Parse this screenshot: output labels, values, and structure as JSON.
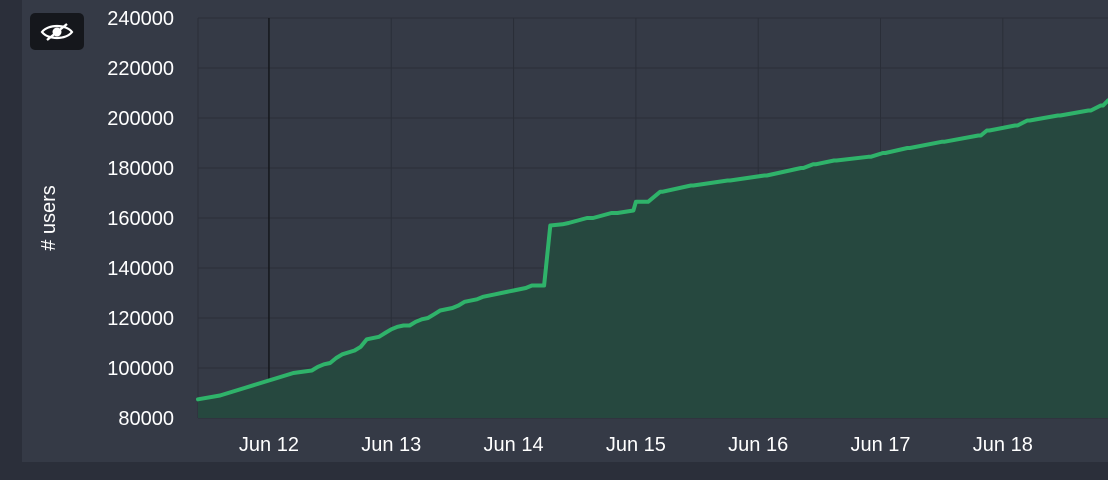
{
  "chart_data": {
    "type": "area",
    "ylabel": "# users",
    "xlabel": "",
    "ylim": [
      80000,
      240000
    ],
    "yticks": [
      "80000",
      "100000",
      "120000",
      "140000",
      "160000",
      "180000",
      "200000",
      "220000",
      "240000"
    ],
    "xticks": [
      "Jun 12",
      "Jun 13",
      "Jun 14",
      "Jun 15",
      "Jun 16",
      "Jun 17",
      "Jun 18"
    ],
    "xlim": [
      11.42,
      18.86
    ],
    "grid": true,
    "series": [
      {
        "color": "#2fb36a",
        "fill": "#26483f",
        "x": [
          11.42,
          11.6,
          11.8,
          12.0,
          12.2,
          12.35,
          12.4,
          12.45,
          12.5,
          12.55,
          12.6,
          12.7,
          12.75,
          12.8,
          12.9,
          12.95,
          13.0,
          13.05,
          13.1,
          13.15,
          13.2,
          13.25,
          13.3,
          13.35,
          13.4,
          13.5,
          13.55,
          13.6,
          13.7,
          13.75,
          13.85,
          13.9,
          14.0,
          14.1,
          14.15,
          14.25,
          14.3,
          14.4,
          14.45,
          14.6,
          14.65,
          14.8,
          14.85,
          14.98,
          15.0,
          15.1,
          15.2,
          15.22,
          15.45,
          15.47,
          15.75,
          15.77,
          16.05,
          16.07,
          16.35,
          16.37,
          16.45,
          16.47,
          16.62,
          16.64,
          16.9,
          16.92,
          17.02,
          17.04,
          17.22,
          17.24,
          17.5,
          17.52,
          17.8,
          17.82,
          17.87,
          17.89,
          18.1,
          18.12,
          18.2,
          18.22,
          18.45,
          18.47,
          18.7,
          18.72,
          18.8,
          18.82,
          18.86
        ],
        "y": [
          87500,
          89000,
          92000,
          95000,
          98000,
          99000,
          100500,
          101500,
          102000,
          104000,
          105500,
          107000,
          108500,
          111500,
          112500,
          114000,
          115500,
          116500,
          117000,
          117000,
          118500,
          119500,
          120000,
          121500,
          123000,
          124000,
          125000,
          126500,
          127500,
          128500,
          129500,
          130000,
          131000,
          132000,
          133000,
          133000,
          157000,
          157500,
          158000,
          160000,
          160000,
          162000,
          162000,
          163000,
          166500,
          166500,
          170500,
          170500,
          173000,
          173000,
          175000,
          175000,
          177000,
          177000,
          180000,
          180000,
          181500,
          181500,
          183000,
          183000,
          184500,
          184500,
          186000,
          186000,
          188000,
          188000,
          190500,
          190500,
          193000,
          193000,
          195000,
          195000,
          197000,
          197000,
          199000,
          199000,
          201000,
          201000,
          203000,
          203000,
          205000,
          205000,
          207000
        ]
      }
    ]
  },
  "icons": {
    "hide": "eye-slash-icon"
  }
}
